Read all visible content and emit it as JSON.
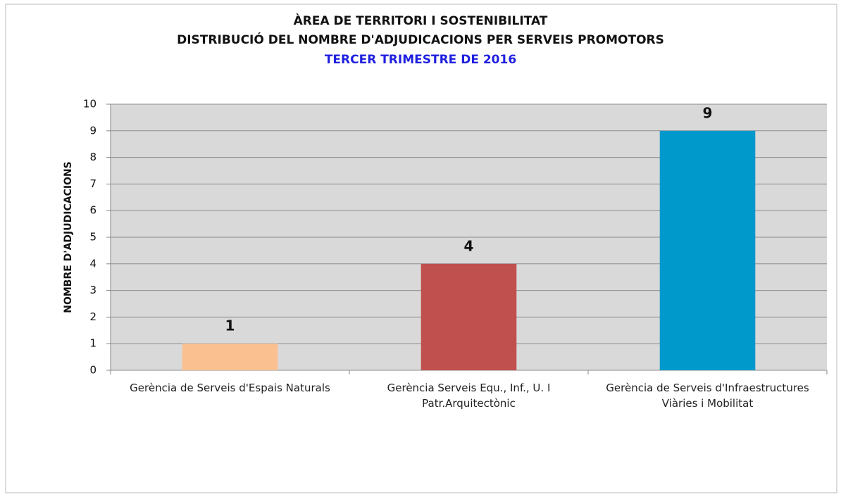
{
  "chart_data": {
    "type": "bar",
    "title": "ÀREA DE TERRITORI I SOSTENIBILITAT",
    "subtitle": "DISTRIBUCIÓ DEL NOMBRE D'ADJUDICACIONS PER SERVEIS PROMOTORS",
    "period": "TERCER TRIMESTRE DE 2016",
    "y_label": "NOMBRE D'ADJUDICACIONS",
    "categories": [
      "Gerència de Serveis d'Espais Naturals",
      "Gerència Serveis Equ., Inf., U. I Patr.Arquitectònic",
      "Gerència de Serveis d'Infraestructures Viàries i Mobilitat"
    ],
    "values": [
      1,
      4,
      9
    ],
    "colors": [
      "#fac090",
      "#c0504d",
      "#0099cc"
    ],
    "ylim": [
      0,
      10
    ],
    "yticks": [
      0,
      1,
      2,
      3,
      4,
      5,
      6,
      7,
      8,
      9,
      10
    ],
    "grid": true
  }
}
